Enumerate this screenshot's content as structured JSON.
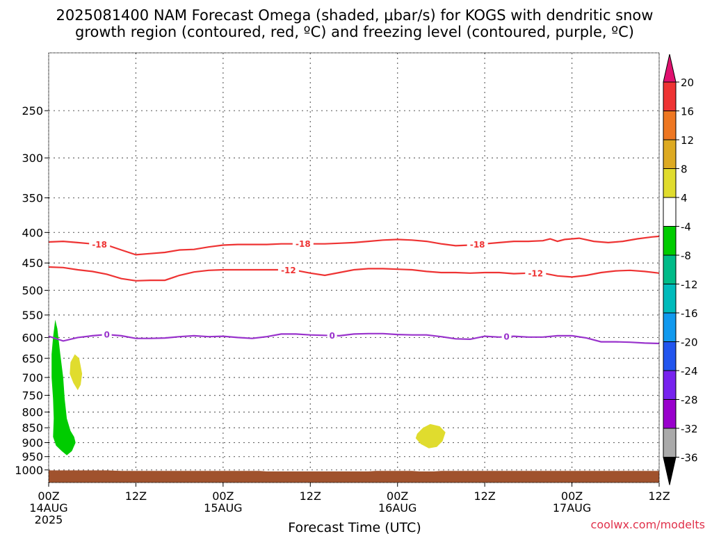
{
  "title_lines": [
    "2025081400 NAM Forecast Omega (shaded, μbar/s) for KOGS with dendritic snow",
    "growth region (contoured, red, ºC) and freezing level (contoured, purple, ºC)"
  ],
  "credit": "coolwx.com/modelts",
  "chart_data": {
    "type": "area",
    "xlabel": "Forecast Time (UTC)",
    "x_range_hours": [
      0,
      84
    ],
    "x_ticks": [
      {
        "hour": 0,
        "lines": [
          "00Z",
          "14AUG",
          "2025"
        ]
      },
      {
        "hour": 12,
        "lines": [
          "12Z"
        ]
      },
      {
        "hour": 24,
        "lines": [
          "00Z",
          "15AUG"
        ]
      },
      {
        "hour": 36,
        "lines": [
          "12Z"
        ]
      },
      {
        "hour": 48,
        "lines": [
          "00Z",
          "16AUG"
        ]
      },
      {
        "hour": 60,
        "lines": [
          "12Z"
        ]
      },
      {
        "hour": 72,
        "lines": [
          "00Z",
          "17AUG"
        ]
      },
      {
        "hour": 84,
        "lines": [
          "12Z"
        ]
      }
    ],
    "y_axis": "pressure (hPa), log scale, inverted",
    "y_range": [
      200,
      1050
    ],
    "y_ticks": [
      "250",
      "300",
      "350",
      "400",
      "450",
      "500",
      "550",
      "600",
      "650",
      "700",
      "750",
      "800",
      "850",
      "900",
      "950",
      "1000"
    ],
    "grid": true,
    "contours": [
      {
        "label": "-18",
        "color": "#ee3333",
        "points": [
          [
            0,
            415
          ],
          [
            2,
            414
          ],
          [
            4,
            416
          ],
          [
            6,
            418
          ],
          [
            8,
            420
          ],
          [
            10,
            428
          ],
          [
            12,
            436
          ],
          [
            14,
            434
          ],
          [
            16,
            432
          ],
          [
            18,
            428
          ],
          [
            20,
            427
          ],
          [
            22,
            423
          ],
          [
            24,
            420
          ],
          [
            26,
            419
          ],
          [
            28,
            419
          ],
          [
            30,
            419
          ],
          [
            32,
            418
          ],
          [
            34,
            418
          ],
          [
            36,
            418
          ],
          [
            38,
            418
          ],
          [
            40,
            417
          ],
          [
            42,
            416
          ],
          [
            44,
            414
          ],
          [
            46,
            412
          ],
          [
            48,
            411
          ],
          [
            50,
            412
          ],
          [
            52,
            414
          ],
          [
            54,
            418
          ],
          [
            56,
            421
          ],
          [
            58,
            420
          ],
          [
            60,
            418
          ],
          [
            62,
            416
          ],
          [
            64,
            414
          ],
          [
            66,
            414
          ],
          [
            68,
            413
          ],
          [
            69,
            410
          ],
          [
            70,
            414
          ],
          [
            71,
            411
          ],
          [
            73,
            409
          ],
          [
            75,
            414
          ],
          [
            77,
            416
          ],
          [
            79,
            414
          ],
          [
            81,
            410
          ],
          [
            83,
            407
          ],
          [
            84,
            406
          ]
        ],
        "labels_at_hours": [
          7,
          35,
          59
        ]
      },
      {
        "label": "-12",
        "color": "#ee3333",
        "points": [
          [
            0,
            457
          ],
          [
            2,
            458
          ],
          [
            4,
            462
          ],
          [
            6,
            465
          ],
          [
            8,
            470
          ],
          [
            10,
            478
          ],
          [
            12,
            482
          ],
          [
            14,
            481
          ],
          [
            16,
            481
          ],
          [
            18,
            472
          ],
          [
            20,
            466
          ],
          [
            22,
            463
          ],
          [
            24,
            462
          ],
          [
            26,
            462
          ],
          [
            28,
            462
          ],
          [
            30,
            462
          ],
          [
            32,
            462
          ],
          [
            34,
            463
          ],
          [
            36,
            468
          ],
          [
            38,
            472
          ],
          [
            40,
            467
          ],
          [
            42,
            462
          ],
          [
            44,
            460
          ],
          [
            46,
            460
          ],
          [
            48,
            461
          ],
          [
            50,
            462
          ],
          [
            52,
            465
          ],
          [
            54,
            467
          ],
          [
            56,
            467
          ],
          [
            58,
            468
          ],
          [
            60,
            467
          ],
          [
            62,
            467
          ],
          [
            64,
            469
          ],
          [
            66,
            468
          ],
          [
            68,
            468
          ],
          [
            70,
            473
          ],
          [
            72,
            475
          ],
          [
            74,
            472
          ],
          [
            76,
            467
          ],
          [
            78,
            464
          ],
          [
            80,
            463
          ],
          [
            82,
            465
          ],
          [
            84,
            468
          ]
        ],
        "labels_at_hours": [
          33,
          67
        ]
      },
      {
        "label": "0",
        "color": "#9933cc",
        "points": [
          [
            0,
            597
          ],
          [
            2,
            608
          ],
          [
            4,
            600
          ],
          [
            6,
            596
          ],
          [
            8,
            593
          ],
          [
            10,
            596
          ],
          [
            12,
            602
          ],
          [
            14,
            602
          ],
          [
            16,
            601
          ],
          [
            18,
            598
          ],
          [
            20,
            596
          ],
          [
            22,
            598
          ],
          [
            24,
            597
          ],
          [
            26,
            600
          ],
          [
            28,
            602
          ],
          [
            30,
            598
          ],
          [
            32,
            592
          ],
          [
            34,
            592
          ],
          [
            36,
            594
          ],
          [
            38,
            595
          ],
          [
            40,
            596
          ],
          [
            42,
            592
          ],
          [
            44,
            591
          ],
          [
            46,
            591
          ],
          [
            48,
            593
          ],
          [
            50,
            594
          ],
          [
            52,
            594
          ],
          [
            54,
            598
          ],
          [
            56,
            603
          ],
          [
            58,
            604
          ],
          [
            60,
            597
          ],
          [
            62,
            599
          ],
          [
            64,
            597
          ],
          [
            66,
            599
          ],
          [
            68,
            599
          ],
          [
            70,
            596
          ],
          [
            72,
            596
          ],
          [
            74,
            601
          ],
          [
            76,
            610
          ],
          [
            78,
            610
          ],
          [
            80,
            611
          ],
          [
            82,
            613
          ],
          [
            84,
            614
          ]
        ],
        "labels_at_hours": [
          8,
          39,
          63
        ]
      }
    ],
    "shaded_regions": [
      {
        "name": "omega -8 to -4",
        "color": "#00cc00",
        "level": "-4"
      },
      {
        "name": "omega 4 to 8 (mid-morning 14AUG)",
        "color": "#e0dc2e",
        "level": "4"
      },
      {
        "name": "omega 4 to 8 (morning 16AUG)",
        "color": "#e0dc2e",
        "level": "4"
      }
    ],
    "terrain": {
      "color": "#a0522d",
      "surface_pressure_hpa": [
        1002,
        1004,
        1004
      ]
    },
    "colorbar": {
      "tick_labels": [
        "20",
        "16",
        "12",
        "8",
        "4",
        "-4",
        "-8",
        "-12",
        "-16",
        "-20",
        "-24",
        "-28",
        "-32",
        "-36"
      ],
      "colors": [
        "#ee3333",
        "#ee7722",
        "#ddaa22",
        "#e0dc2e",
        "#ffffff",
        "#00cc00",
        "#00bb88",
        "#00bbbb",
        "#1199ee",
        "#2255ee",
        "#7722ee",
        "#9900cc",
        "#aaaaaa"
      ],
      "top_arrow_color": "#e0116f",
      "bottom_arrow_color": "#000000"
    }
  }
}
